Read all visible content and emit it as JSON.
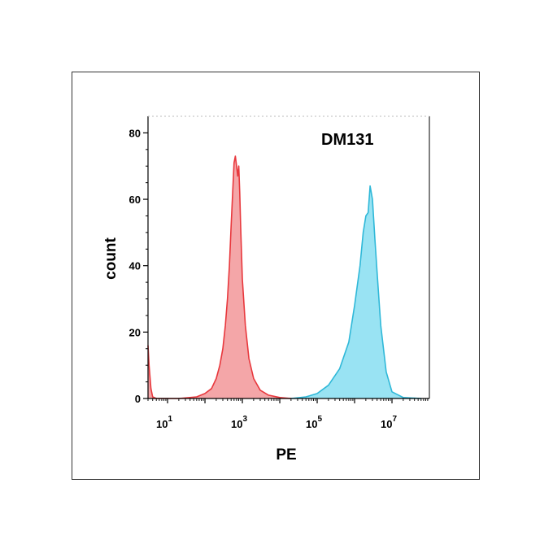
{
  "chart_data": {
    "type": "area",
    "title": "DM131",
    "xlabel": "PE",
    "ylabel": "count",
    "x_scale": "log10",
    "xlim": [
      3,
      100000000
    ],
    "ylim": [
      0,
      85
    ],
    "y_ticks": [
      0,
      20,
      40,
      60,
      80
    ],
    "y_tick_labels": [
      "0",
      "20",
      "40",
      "60",
      "80"
    ],
    "x_ticks": [
      10,
      1000,
      100000,
      10000000
    ],
    "x_tick_labels": [
      {
        "base": "10",
        "exp": "1"
      },
      {
        "base": "10",
        "exp": "3"
      },
      {
        "base": "10",
        "exp": "5"
      },
      {
        "base": "10",
        "exp": "7"
      }
    ],
    "grid": false,
    "legend": "none",
    "series": [
      {
        "color": "#e8383d",
        "fill": "#f4a6a8",
        "x": [
          3,
          3.2,
          3.6,
          4,
          5,
          20,
          60,
          100,
          150,
          200,
          250,
          300,
          350,
          400,
          450,
          500,
          550,
          600,
          650,
          700,
          750,
          800,
          850,
          900,
          1000,
          1200,
          1500,
          2000,
          3000,
          5000,
          10000,
          20000
        ],
        "y": [
          16,
          10,
          3,
          0.5,
          0,
          0,
          0.5,
          1.5,
          3,
          6,
          10,
          15,
          22,
          30,
          40,
          52,
          62,
          71,
          73,
          70,
          67,
          70,
          62,
          52,
          36,
          22,
          12,
          6,
          2.5,
          1,
          0.3,
          0
        ]
      },
      {
        "color": "#2fb8d8",
        "fill": "#99e3f3",
        "x": [
          20000,
          50000,
          100000,
          200000,
          400000,
          700000,
          1000000,
          1400000,
          1700000,
          2000000,
          2300000,
          2600000,
          3000000,
          3500000,
          4000000,
          5000000,
          7000000,
          10000000,
          20000000,
          60000000
        ],
        "y": [
          0,
          0.5,
          1.5,
          4,
          9,
          17,
          28,
          40,
          50,
          55,
          56,
          64,
          60,
          48,
          38,
          22,
          8,
          2,
          0.3,
          0
        ]
      }
    ]
  }
}
